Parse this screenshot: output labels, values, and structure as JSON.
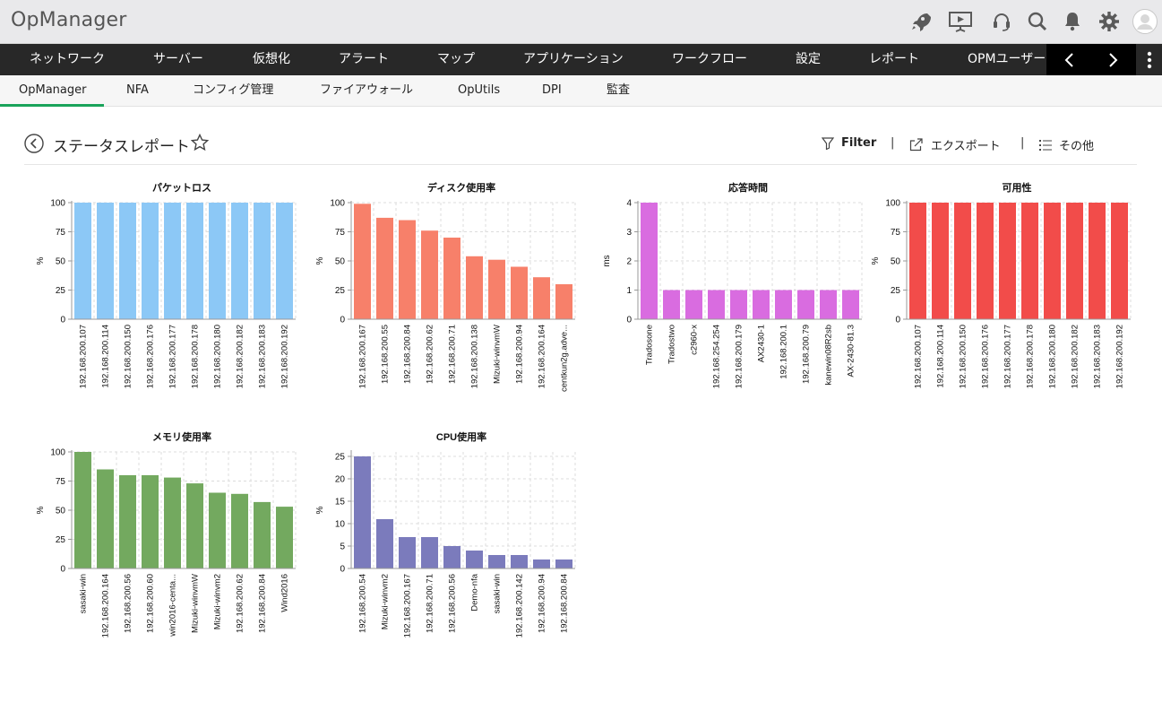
{
  "app": {
    "title": "OpManager"
  },
  "header_icons": [
    "rocket-icon",
    "presentation-icon",
    "support-headset-icon",
    "search-icon",
    "bell-icon",
    "gear-icon",
    "user-avatar-icon"
  ],
  "main_nav": {
    "items": [
      "ネットワーク",
      "サーバー",
      "仮想化",
      "アラート",
      "マップ",
      "アプリケーション",
      "ワークフロー",
      "設定",
      "レポート",
      "OPMユーザー"
    ]
  },
  "sub_nav": {
    "items": [
      "OpManager",
      "NFA",
      "コンフィグ管理",
      "ファイアウォール",
      "OpUtils",
      "DPI",
      "監査"
    ],
    "active": "OpManager"
  },
  "page": {
    "title": "ステータスレポート",
    "filter_label": "Filter",
    "export_label": "エクスポート",
    "more_label": "その他"
  },
  "chart_data": [
    {
      "type": "bar",
      "title": "パケットロス",
      "ylabel": "%",
      "ylim": [
        0,
        100
      ],
      "yticks": [
        0,
        25,
        50,
        75,
        100
      ],
      "color": "#8cc8f6",
      "categories": [
        "192.168.200.107",
        "192.168.200.114",
        "192.168.200.150",
        "192.168.200.176",
        "192.168.200.177",
        "192.168.200.178",
        "192.168.200.180",
        "192.168.200.182",
        "192.168.200.183",
        "192.168.200.192"
      ],
      "values": [
        100,
        100,
        100,
        100,
        100,
        100,
        100,
        100,
        100,
        100
      ]
    },
    {
      "type": "bar",
      "title": "ディスク使用率",
      "ylabel": "%",
      "ylim": [
        0,
        100
      ],
      "yticks": [
        0,
        25,
        50,
        75,
        100
      ],
      "color": "#f7806a",
      "categories": [
        "192.168.200.167",
        "192.168.200.55",
        "192.168.200.84",
        "192.168.200.62",
        "192.168.200.71",
        "192.168.200.138",
        "Mizuki-winvmW",
        "192.168.200.94",
        "192.168.200.164",
        "centkun2g.adve..."
      ],
      "values": [
        99,
        87,
        85,
        76,
        70,
        54,
        51,
        45,
        36,
        30
      ]
    },
    {
      "type": "bar",
      "title": "応答時間",
      "ylabel": "ms",
      "ylim": [
        0,
        4
      ],
      "yticks": [
        0,
        1,
        2,
        3,
        4
      ],
      "color": "#d96ce0",
      "categories": [
        "Tradosone",
        "Tradostwo",
        "c2960-x",
        "192.168.254.254",
        "192.168.200.179",
        "AX2430-1",
        "192.168.200.1",
        "192.168.200.79",
        "kanewin08R2sb",
        "AX-2430-81.3"
      ],
      "values": [
        4,
        1,
        1,
        1,
        1,
        1,
        1,
        1,
        1,
        1
      ]
    },
    {
      "type": "bar",
      "title": "可用性",
      "ylabel": "%",
      "ylim": [
        0,
        100
      ],
      "yticks": [
        0,
        25,
        50,
        75,
        100
      ],
      "color": "#f24c4a",
      "categories": [
        "192.168.200.107",
        "192.168.200.114",
        "192.168.200.150",
        "192.168.200.176",
        "192.168.200.177",
        "192.168.200.178",
        "192.168.200.180",
        "192.168.200.182",
        "192.168.200.183",
        "192.168.200.192"
      ],
      "values": [
        100,
        100,
        100,
        100,
        100,
        100,
        100,
        100,
        100,
        100
      ]
    },
    {
      "type": "bar",
      "title": "メモリ使用率",
      "ylabel": "%",
      "ylim": [
        0,
        100
      ],
      "yticks": [
        0,
        25,
        50,
        75,
        100
      ],
      "color": "#73a95f",
      "categories": [
        "sasaki-win",
        "192.168.200.164",
        "192.168.200.56",
        "192.168.200.60",
        "win2016-centa...",
        "Mizuki-winvmW",
        "Mizuki-winvm2",
        "192.168.200.62",
        "192.168.200.84",
        "Wind2016"
      ],
      "values": [
        100,
        85,
        80,
        80,
        78,
        73,
        65,
        64,
        57,
        53
      ]
    },
    {
      "type": "bar",
      "title": "CPU使用率",
      "ylabel": "%",
      "ylim": [
        0,
        26
      ],
      "yticks": [
        0,
        5,
        10,
        15,
        20,
        25
      ],
      "color": "#7b7bbc",
      "categories": [
        "192.168.200.54",
        "Mizuki-winvm2",
        "192.168.200.167",
        "192.168.200.71",
        "192.168.200.56",
        "Demo-nfa",
        "sasaki-win",
        "192.168.200.142",
        "192.168.200.94",
        "192.168.200.84"
      ],
      "values": [
        25,
        11,
        7,
        7,
        5,
        4,
        3,
        3,
        2,
        2
      ]
    }
  ]
}
